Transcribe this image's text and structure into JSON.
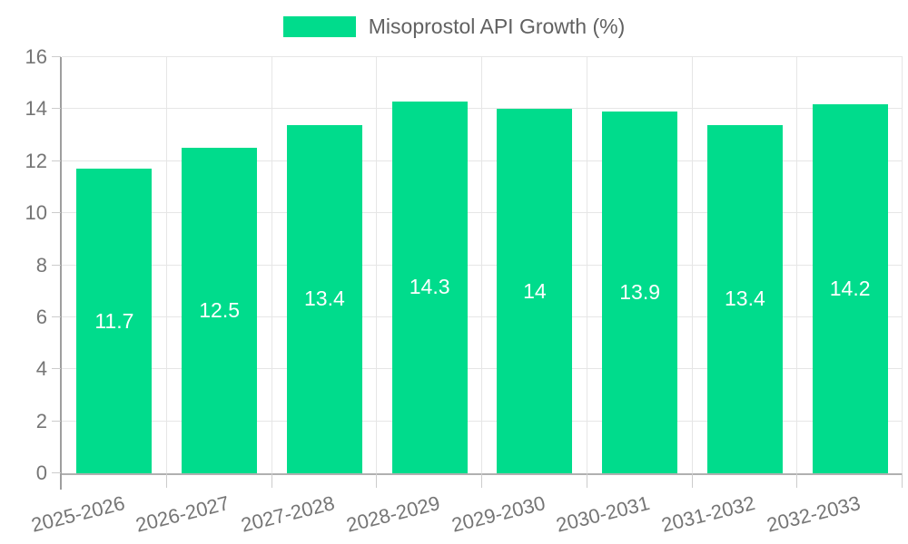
{
  "legend": {
    "label": "Misoprostol API Growth (%)"
  },
  "colors": {
    "bar": "#00DC8C",
    "value_label": "#FFFFFF",
    "legend_text": "#616161",
    "axis_text": "#757575",
    "gridline": "#E6E6E6",
    "tick": "#CCCCCC",
    "axis_line_left": "#9E9E9E",
    "axis_line_bottom": "#B0B0B0",
    "background": "#FFFFFF"
  },
  "chart_data": {
    "type": "bar",
    "title": "Misoprostol API Growth (%)",
    "series_name": "Misoprostol API Growth (%)",
    "categories": [
      "2025-2026",
      "2026-2027",
      "2027-2028",
      "2028-2029",
      "2029-2030",
      "2030-2031",
      "2031-2032",
      "2032-2033"
    ],
    "values": [
      11.7,
      12.5,
      13.4,
      14.3,
      14,
      13.9,
      13.4,
      14.2
    ],
    "value_labels": [
      "11.7",
      "12.5",
      "13.4",
      "14.3",
      "14",
      "13.9",
      "13.4",
      "14.2"
    ],
    "xlabel": "",
    "ylabel": "",
    "ylim": [
      0,
      16
    ],
    "yticks": [
      0,
      2,
      4,
      6,
      8,
      10,
      12,
      14,
      16
    ],
    "grid": true,
    "legend_position": "top",
    "value_label_position": "inside-center",
    "x_label_rotation_deg": -14
  }
}
